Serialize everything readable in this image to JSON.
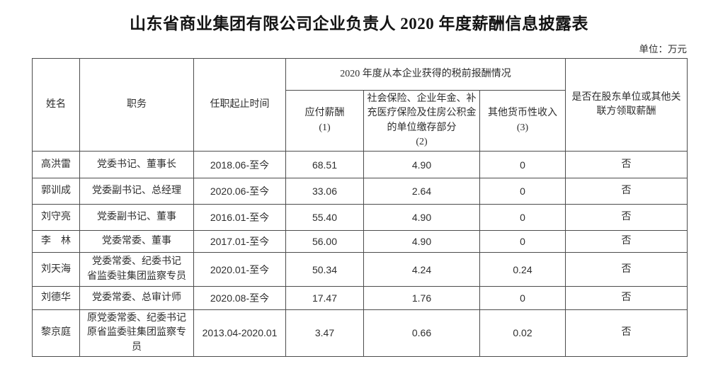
{
  "page": {
    "title": "山东省商业集团有限公司企业负责人 2020 年度薪酬信息披露表",
    "unit_label": "单位：万元"
  },
  "table": {
    "headers": {
      "name": "姓名",
      "position": "职务",
      "tenure": "任职起止时间",
      "compensation_group": "2020 年度从本企业获得的税前报酬情况",
      "payable_label": "应付薪酬",
      "payable_num": "(1)",
      "social_label": "社会保险、企业年金、补充医疗保险及住房公积金的单位缴存部分",
      "social_num": "(2)",
      "other_label": "其他货币性收入",
      "other_num": "(3)",
      "shareholder": "是否在股东单位或其他关联方领取薪酬"
    },
    "rows": [
      {
        "name": "高洪雷",
        "position": "党委书记、董事长",
        "tenure": "2018.06-至今",
        "payable": "68.51",
        "social": "4.90",
        "other": "0",
        "shareholder": "否"
      },
      {
        "name": "郭训成",
        "position": "党委副书记、总经理",
        "tenure": "2020.06-至今",
        "payable": "33.06",
        "social": "2.64",
        "other": "0",
        "shareholder": "否"
      },
      {
        "name": "刘守亮",
        "position": "党委副书记、董事",
        "tenure": "2016.01-至今",
        "payable": "55.40",
        "social": "4.90",
        "other": "0",
        "shareholder": "否"
      },
      {
        "name": "李　林",
        "position": "党委常委、董事",
        "tenure": "2017.01-至今",
        "payable": "56.00",
        "social": "4.90",
        "other": "0",
        "shareholder": "否"
      },
      {
        "name": "刘天海",
        "position": "党委常委、纪委书记\n省监委驻集团监察专员",
        "tenure": "2020.01-至今",
        "payable": "50.34",
        "social": "4.24",
        "other": "0.24",
        "shareholder": "否"
      },
      {
        "name": "刘德华",
        "position": "党委常委、总审计师",
        "tenure": "2020.08-至今",
        "payable": "17.47",
        "social": "1.76",
        "other": "0",
        "shareholder": "否"
      },
      {
        "name": "黎京庭",
        "position": "原党委常委、纪委书记\n原省监委驻集团监察专员",
        "tenure": "2013.04-2020.01",
        "payable": "3.47",
        "social": "0.66",
        "other": "0.02",
        "shareholder": "否"
      }
    ]
  }
}
